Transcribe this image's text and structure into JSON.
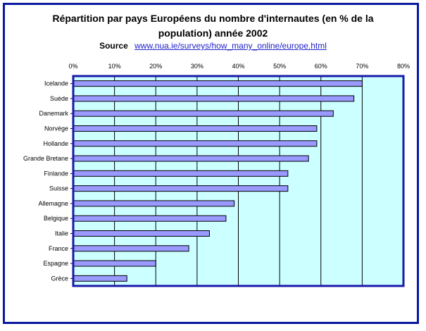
{
  "title_lines": [
    "Répartition par pays Européens du nombre d'internautes (en % de la",
    "population) année 2002"
  ],
  "source": {
    "label": "Source",
    "link_text": "www.nua.ie/surveys/how_many_online/europe.html"
  },
  "colors": {
    "frame": "#0a1aa0",
    "plot_background": "#ccffff",
    "plot_border": "#1a1aa8",
    "bar_fill": "#9999ff",
    "bar_stroke": "#000000",
    "gridline": "#000000"
  },
  "chart_data": {
    "type": "bar",
    "orientation": "horizontal",
    "categories": [
      "Icelande",
      "Suède",
      "Danemark",
      "Norvège",
      "Hollande",
      "Grande Bretane",
      "Finlande",
      "Suisse",
      "Allemagne",
      "Belgique",
      "Italie",
      "France",
      "Espagne",
      "Grèce"
    ],
    "values": [
      70,
      68,
      63,
      59,
      59,
      57,
      52,
      52,
      39,
      37,
      33,
      28,
      20,
      13
    ],
    "xlim": [
      0,
      80
    ],
    "x_ticks": [
      "0%",
      "10%",
      "20%",
      "30%",
      "40%",
      "50%",
      "60%",
      "70%",
      "80%"
    ],
    "x_axis_position": "top",
    "grid": "vertical",
    "legend": "none"
  }
}
